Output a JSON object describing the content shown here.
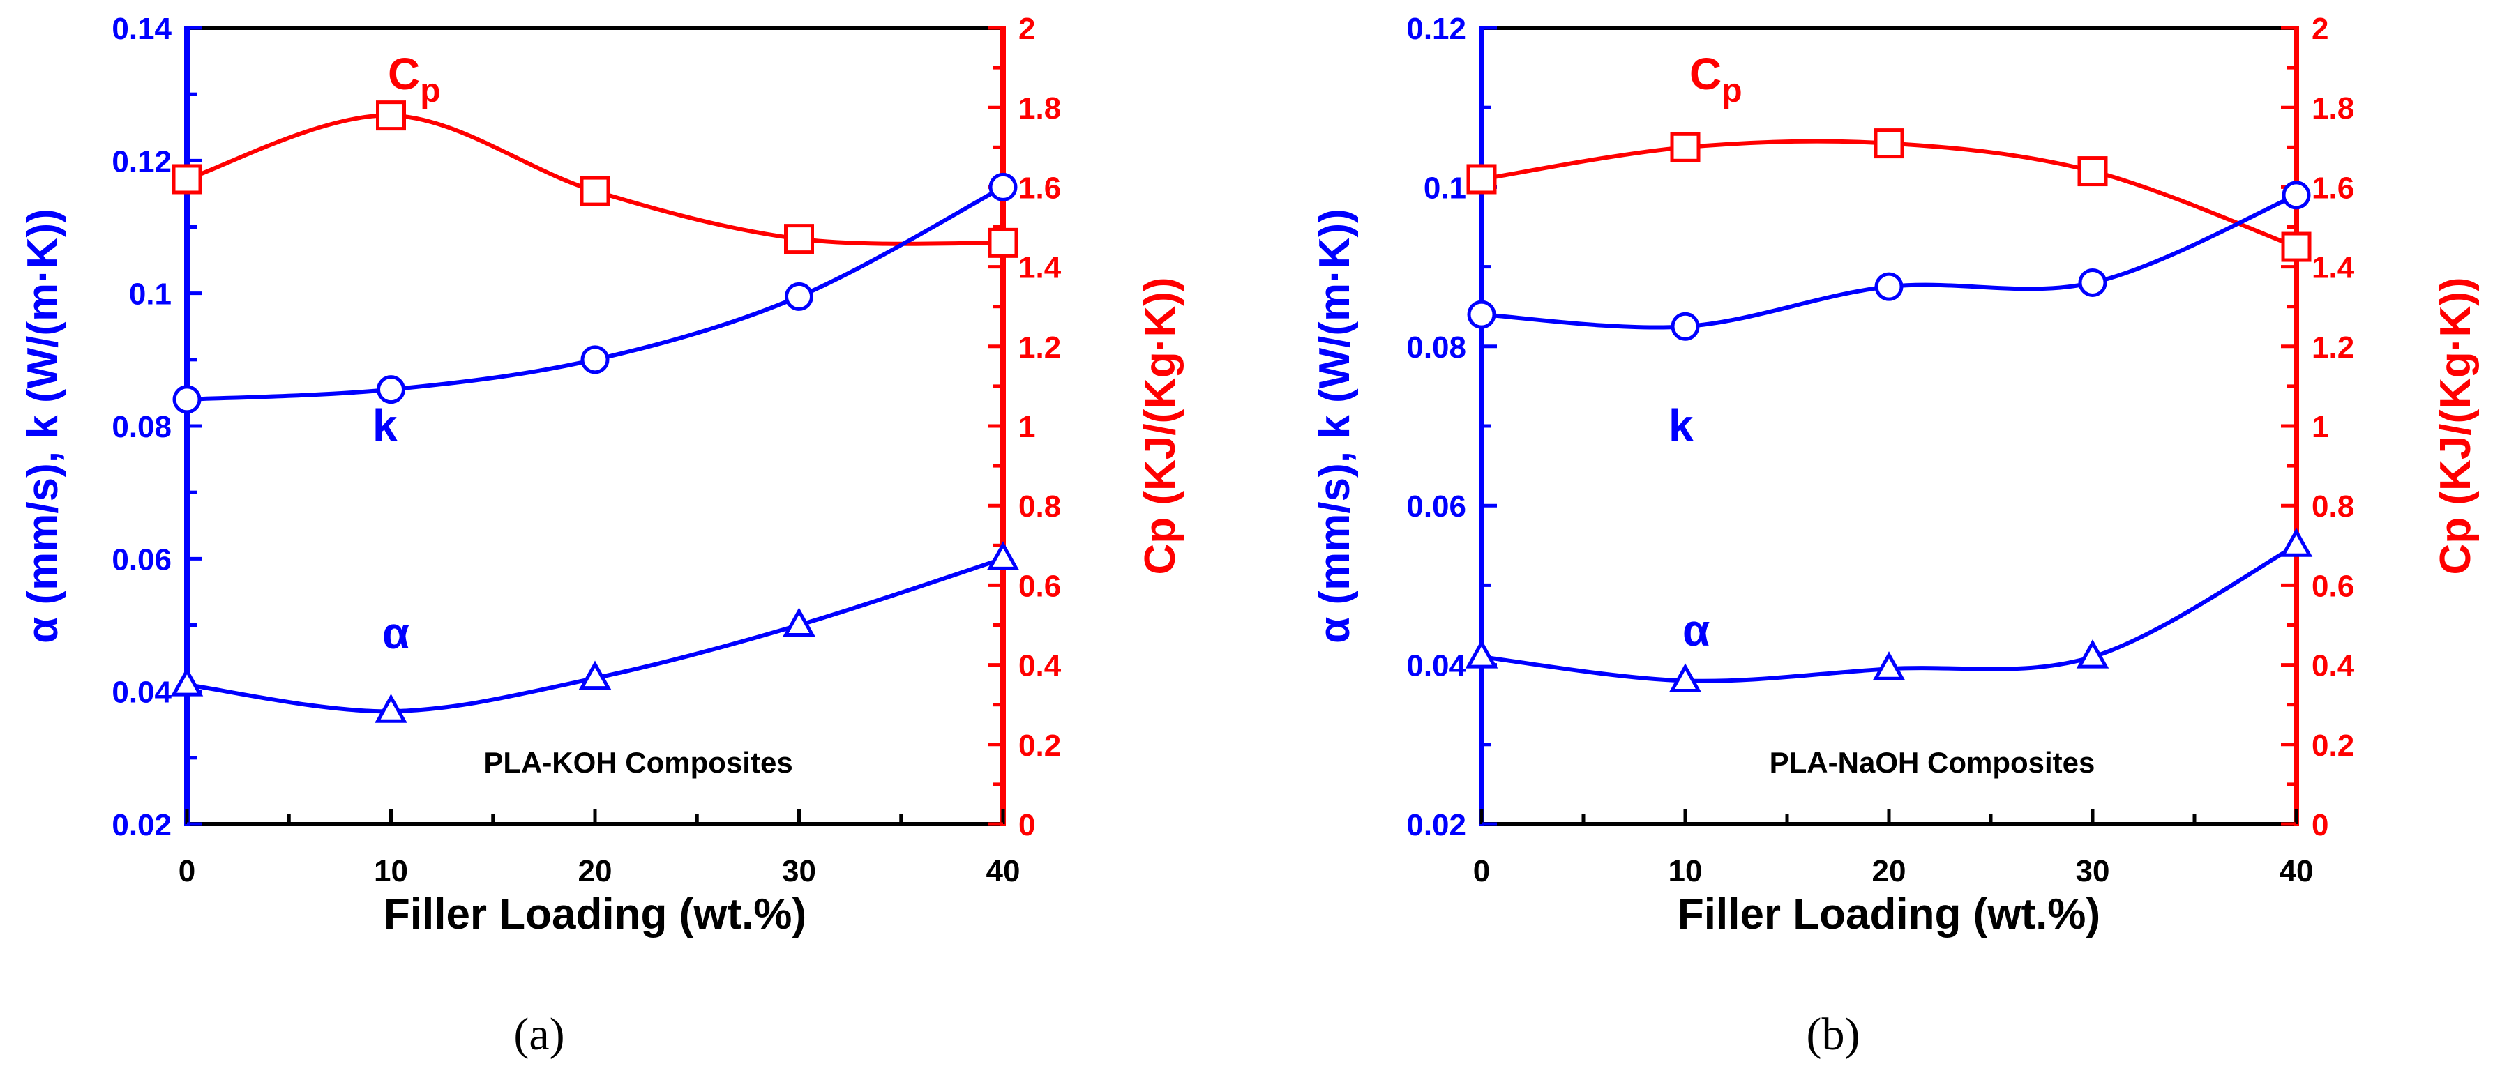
{
  "chart_data": [
    {
      "type": "line",
      "panel": "a",
      "caption": "(a)",
      "annotation": "PLA-KOH Composites",
      "xlabel": "Filler Loading (wt.%)",
      "ylabel_left": "α (mm/s), k (W/(m·K))",
      "ylabel_right": "Cp (KJ/(Kg·K))",
      "xlim": [
        0,
        40
      ],
      "x_ticks": [
        0,
        10,
        20,
        30,
        40
      ],
      "ylim_left": [
        0.02,
        0.14
      ],
      "y_left_ticks": [
        "0.02",
        "0.04",
        "0.06",
        "0.08",
        "0.1",
        "0.12",
        "0.14"
      ],
      "ylim_right": [
        0,
        2
      ],
      "y_right_ticks": [
        "0",
        "0.2",
        "0.4",
        "0.6",
        "0.8",
        "1",
        "1.2",
        "1.4",
        "1.6",
        "1.8",
        "2"
      ],
      "x": [
        0,
        10,
        20,
        30,
        40
      ],
      "series": [
        {
          "name": "Cp",
          "label": "C",
          "label_sub": "p",
          "axis": "right",
          "marker": "square",
          "color": "#ff0000",
          "values": [
            1.62,
            1.78,
            1.59,
            1.47,
            1.46
          ]
        },
        {
          "name": "k",
          "label": "k",
          "axis": "left",
          "marker": "circle",
          "color": "#0000ff",
          "values": [
            0.084,
            0.0855,
            0.09,
            0.0995,
            0.116
          ]
        },
        {
          "name": "α",
          "label": "α",
          "axis": "left",
          "marker": "triangle",
          "color": "#0000ff",
          "values": [
            0.041,
            0.037,
            0.042,
            0.05,
            0.06
          ]
        }
      ]
    },
    {
      "type": "line",
      "panel": "b",
      "caption": "(b)",
      "annotation": "PLA-NaOH Composites",
      "xlabel": "Filler Loading (wt.%)",
      "ylabel_left": "α (mm/s), k (W/(m·K))",
      "ylabel_right": "Cp (KJ/(Kg·K))",
      "xlim": [
        0,
        40
      ],
      "x_ticks": [
        0,
        10,
        20,
        30,
        40
      ],
      "ylim_left": [
        0.02,
        0.12
      ],
      "y_left_ticks": [
        "0.02",
        "0.04",
        "0.06",
        "0.08",
        "0.1",
        "0.12"
      ],
      "ylim_right": [
        0,
        2
      ],
      "y_right_ticks": [
        "0",
        "0.2",
        "0.4",
        "0.6",
        "0.8",
        "1",
        "1.2",
        "1.4",
        "1.6",
        "1.8",
        "2"
      ],
      "x": [
        0,
        10,
        20,
        30,
        40
      ],
      "series": [
        {
          "name": "Cp",
          "label": "C",
          "label_sub": "p",
          "axis": "right",
          "marker": "square",
          "color": "#ff0000",
          "values": [
            1.62,
            1.7,
            1.71,
            1.64,
            1.45
          ]
        },
        {
          "name": "k",
          "label": "k",
          "axis": "left",
          "marker": "circle",
          "color": "#0000ff",
          "values": [
            0.084,
            0.0825,
            0.0875,
            0.088,
            0.099
          ]
        },
        {
          "name": "α",
          "label": "α",
          "axis": "left",
          "marker": "triangle",
          "color": "#0000ff",
          "values": [
            0.041,
            0.038,
            0.0395,
            0.041,
            0.055
          ]
        }
      ]
    }
  ]
}
